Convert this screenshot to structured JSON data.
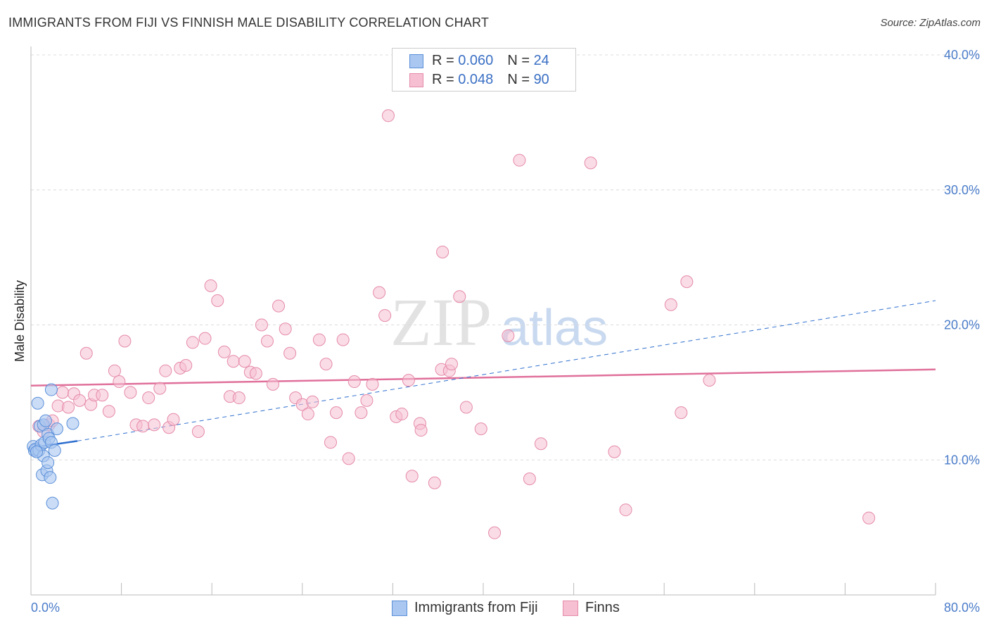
{
  "title": "IMMIGRANTS FROM FIJI VS FINNISH MALE DISABILITY CORRELATION CHART",
  "source": "Source: ZipAtlas.com",
  "watermark": {
    "zip": "ZIP",
    "atlas": "atlas"
  },
  "colors": {
    "fiji_fill": "#a9c7f0",
    "fiji_stroke": "#5b8fd9",
    "fiji_line": "#2f6fcf",
    "finns_fill": "#f6c0d2",
    "finns_stroke": "#e58aa8",
    "finns_line": "#e0709a",
    "grid": "#dcdcdc",
    "tick_text": "#4a7cc9"
  },
  "legend_top": {
    "rows": [
      {
        "r_label": "R = ",
        "r_value": "0.060",
        "n_label": "N = ",
        "n_value": "24"
      },
      {
        "r_label": "R = ",
        "r_value": "0.048",
        "n_label": "N = ",
        "n_value": "90"
      }
    ]
  },
  "legend_bottom": {
    "items": [
      "Immigrants from Fiji",
      "Finns"
    ]
  },
  "chart_data": {
    "type": "scatter",
    "title": "IMMIGRANTS FROM FIJI VS FINNISH MALE DISABILITY CORRELATION CHART",
    "xlabel": "",
    "ylabel": "Male Disability",
    "xlim": [
      0,
      80
    ],
    "ylim": [
      0,
      40
    ],
    "x_tick_labels": [
      "0.0%",
      "80.0%"
    ],
    "y_ticks": [
      10,
      20,
      30,
      40
    ],
    "y_tick_labels": [
      "10.0%",
      "20.0%",
      "30.0%",
      "40.0%"
    ],
    "grid": true,
    "legend_position": "top-center",
    "series": [
      {
        "name": "Immigrants from Fiji",
        "r": 0.06,
        "n": 24,
        "trend_solid": [
          [
            0.0,
            10.9
          ],
          [
            4.1,
            11.4
          ]
        ],
        "trend_dashed": [
          [
            4.1,
            11.4
          ],
          [
            80.0,
            21.8
          ]
        ],
        "points": [
          [
            0.2,
            11.0
          ],
          [
            0.3,
            10.7
          ],
          [
            0.4,
            10.8
          ],
          [
            0.6,
            14.2
          ],
          [
            0.7,
            10.7
          ],
          [
            0.8,
            12.5
          ],
          [
            0.9,
            11.1
          ],
          [
            1.0,
            8.9
          ],
          [
            1.1,
            12.6
          ],
          [
            1.1,
            10.3
          ],
          [
            1.2,
            11.3
          ],
          [
            1.3,
            12.9
          ],
          [
            1.4,
            9.2
          ],
          [
            1.5,
            9.8
          ],
          [
            1.5,
            11.9
          ],
          [
            1.6,
            11.6
          ],
          [
            1.7,
            8.7
          ],
          [
            1.8,
            11.3
          ],
          [
            1.8,
            15.2
          ],
          [
            1.9,
            6.8
          ],
          [
            2.1,
            10.7
          ],
          [
            2.3,
            12.3
          ],
          [
            3.7,
            12.7
          ],
          [
            0.5,
            10.6
          ]
        ]
      },
      {
        "name": "Finns",
        "r": 0.048,
        "n": 90,
        "trend_solid": [
          [
            0.0,
            15.5
          ],
          [
            80.0,
            16.7
          ]
        ],
        "points": [
          [
            0.7,
            12.5
          ],
          [
            1.1,
            12.1
          ],
          [
            1.6,
            12.6
          ],
          [
            1.9,
            12.9
          ],
          [
            2.4,
            14.0
          ],
          [
            2.8,
            15.0
          ],
          [
            3.3,
            13.9
          ],
          [
            3.8,
            14.9
          ],
          [
            4.3,
            14.4
          ],
          [
            4.9,
            17.9
          ],
          [
            5.3,
            14.1
          ],
          [
            5.6,
            14.8
          ],
          [
            6.3,
            14.8
          ],
          [
            6.9,
            13.6
          ],
          [
            7.4,
            16.6
          ],
          [
            7.8,
            15.8
          ],
          [
            8.3,
            18.8
          ],
          [
            8.8,
            15.0
          ],
          [
            9.3,
            12.6
          ],
          [
            9.9,
            12.5
          ],
          [
            10.4,
            14.6
          ],
          [
            10.9,
            12.6
          ],
          [
            11.4,
            15.3
          ],
          [
            11.9,
            16.6
          ],
          [
            12.2,
            12.4
          ],
          [
            12.6,
            13.0
          ],
          [
            13.2,
            16.8
          ],
          [
            13.7,
            17.0
          ],
          [
            14.3,
            18.7
          ],
          [
            14.8,
            12.1
          ],
          [
            15.4,
            19.0
          ],
          [
            15.9,
            22.9
          ],
          [
            16.5,
            21.8
          ],
          [
            17.1,
            18.0
          ],
          [
            17.6,
            14.7
          ],
          [
            17.9,
            17.3
          ],
          [
            18.4,
            14.6
          ],
          [
            18.9,
            17.3
          ],
          [
            19.4,
            16.5
          ],
          [
            19.9,
            16.4
          ],
          [
            20.4,
            20.0
          ],
          [
            20.9,
            18.8
          ],
          [
            21.4,
            15.6
          ],
          [
            21.9,
            21.4
          ],
          [
            22.5,
            19.7
          ],
          [
            22.9,
            17.9
          ],
          [
            23.4,
            14.6
          ],
          [
            24.0,
            14.1
          ],
          [
            24.5,
            13.4
          ],
          [
            24.9,
            14.3
          ],
          [
            25.5,
            18.9
          ],
          [
            26.1,
            17.1
          ],
          [
            26.5,
            11.3
          ],
          [
            27.0,
            13.5
          ],
          [
            27.6,
            18.9
          ],
          [
            28.1,
            10.1
          ],
          [
            28.6,
            15.8
          ],
          [
            29.2,
            13.5
          ],
          [
            29.7,
            14.4
          ],
          [
            30.2,
            15.6
          ],
          [
            30.8,
            22.4
          ],
          [
            31.3,
            20.7
          ],
          [
            31.6,
            35.5
          ],
          [
            32.3,
            13.2
          ],
          [
            32.8,
            13.4
          ],
          [
            33.4,
            15.9
          ],
          [
            33.7,
            8.8
          ],
          [
            34.4,
            12.7
          ],
          [
            34.5,
            12.2
          ],
          [
            35.7,
            8.3
          ],
          [
            36.3,
            16.7
          ],
          [
            36.4,
            25.4
          ],
          [
            37.0,
            16.6
          ],
          [
            37.2,
            17.1
          ],
          [
            37.9,
            22.1
          ],
          [
            38.5,
            13.9
          ],
          [
            39.8,
            12.3
          ],
          [
            41.0,
            4.6
          ],
          [
            42.2,
            19.2
          ],
          [
            43.2,
            32.2
          ],
          [
            44.1,
            8.6
          ],
          [
            45.1,
            11.2
          ],
          [
            49.5,
            32.0
          ],
          [
            51.6,
            10.6
          ],
          [
            52.6,
            6.3
          ],
          [
            56.6,
            21.5
          ],
          [
            57.5,
            13.5
          ],
          [
            58.0,
            23.2
          ],
          [
            60.0,
            15.9
          ],
          [
            74.1,
            5.7
          ]
        ]
      }
    ]
  }
}
